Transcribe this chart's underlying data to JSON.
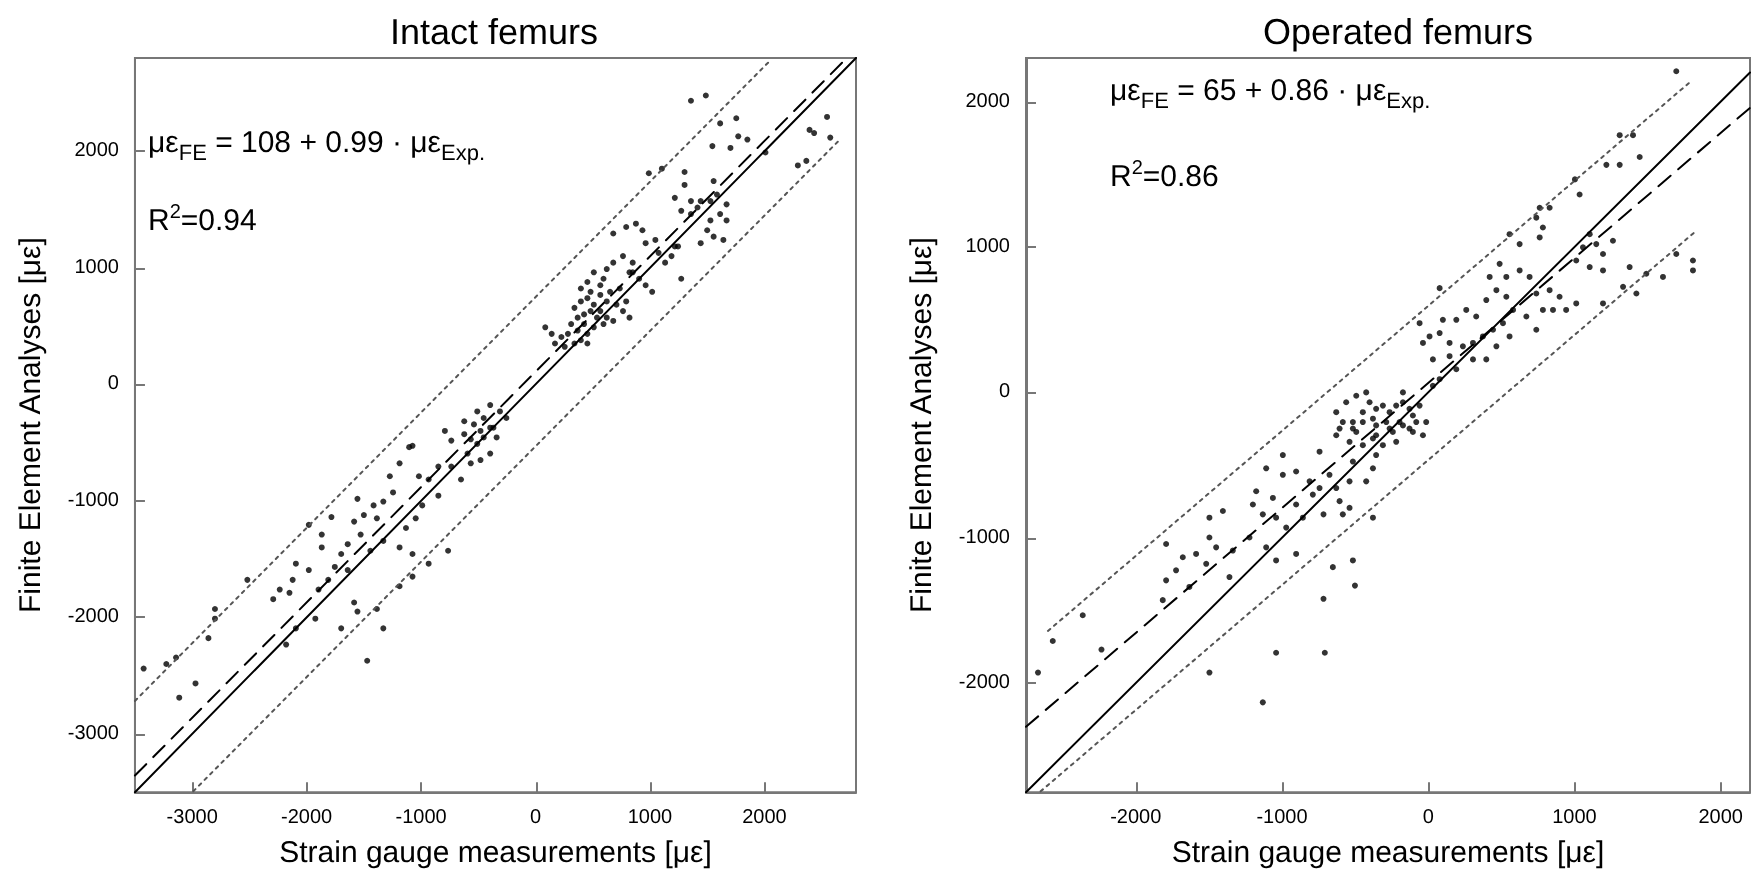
{
  "chart_data": [
    {
      "type": "scatter",
      "title": "Intact femurs",
      "xlabel": "Strain gauge measurements [με]",
      "ylabel": "Finite Element Analyses [με]",
      "annotations": [
        "με$_{FE}$ = 108 + 0.99 · με$_{Exp.}$",
        "R$^{2}$=0.94"
      ],
      "xlim": [
        -3500,
        2800
      ],
      "ylim": [
        -3500,
        2800
      ],
      "xticks": [
        -3000,
        -2000,
        -1000,
        0,
        1000,
        2000
      ],
      "yticks": [
        -3000,
        -2000,
        -1000,
        0,
        1000,
        2000
      ],
      "grid": false,
      "series": [
        {
          "type": "scatter",
          "marker": "circle",
          "color": "#000000",
          "x": [
            1358,
            1488,
            1613,
            1754,
            1771,
            1545,
            1703,
            1851,
            2009,
            2394,
            2547,
            2575,
            2292,
            2366,
            2434,
            990,
            1104,
            1302,
            1302,
            1217,
            1358,
            1443,
            1273,
            1358,
            1415,
            1528,
            1585,
            1669,
            1613,
            1669,
            1500,
            1556,
            1641,
            1443,
            1245,
            1188,
            1273,
            679,
            792,
            877,
            934,
            962,
            1047,
            1075,
            1132,
            1019,
            905,
            821,
            849,
            764,
            679,
            622,
            594,
            509,
            453,
            396,
            481,
            566,
            622,
            707,
            764,
            821,
            622,
            566,
            509,
            453,
            396,
            340,
            368,
            311,
            283,
            368,
            424,
            453,
            396,
            340,
            255,
            453,
            85,
            141,
            170,
            226,
            509,
            594,
            679,
            962,
            792,
            537,
            424,
            481,
            566,
            651,
            736,
            849,
            1217,
            1528,
            1556,
            -1075,
            -623,
            -509,
            -396,
            -311,
            -255,
            -481,
            -566,
            -453,
            -368,
            -792,
            -736,
            -623,
            -538,
            -453,
            -396,
            -340,
            -509,
            -594,
            -566,
            -481,
            -396,
            -651,
            -736,
            -849,
            -934,
            -1019,
            -1104,
            -1188,
            -1273,
            -1245,
            -1330,
            -1386,
            -1500,
            -1585,
            -1528,
            -1443,
            -1330,
            -1188,
            -1075,
            -1132,
            -1047,
            -990,
            -849,
            -764,
            -934,
            -1641,
            -1698,
            -1754,
            -1641,
            -1811,
            -1896,
            -1981,
            -2094,
            -2122,
            -2150,
            -2235,
            -2292,
            -1868,
            -1981,
            -1783,
            -1556,
            -1415,
            -2518,
            -2094,
            -2179,
            -1924,
            -1698,
            -1556,
            -1386,
            -1330,
            -1471,
            -1585,
            -2801,
            -2801,
            -2858,
            -2971,
            -3141,
            -3226,
            -3424,
            -3113,
            -1188,
            -1075,
            -1868
          ],
          "values": [
            2433,
            2478,
            2239,
            2283,
            2128,
            2044,
            2028,
            2100,
            1989,
            2183,
            2294,
            2117,
            1878,
            1917,
            2156,
            1811,
            1850,
            1822,
            1711,
            1600,
            1572,
            1572,
            1489,
            1461,
            1517,
            1572,
            1628,
            1544,
            1461,
            1406,
            1322,
            1267,
            1239,
            1211,
            1183,
            1100,
            906,
            1294,
            1350,
            1378,
            1322,
            1211,
            1239,
            1128,
            1044,
            794,
            906,
            961,
            1044,
            1100,
            1044,
            989,
            906,
            961,
            878,
            822,
            794,
            767,
            711,
            683,
            628,
            572,
            572,
            628,
            683,
            739,
            711,
            656,
            572,
            517,
            433,
            461,
            517,
            433,
            378,
            350,
            322,
            350,
            489,
            433,
            350,
            406,
            489,
            517,
            544,
            850,
            711,
            572,
            600,
            628,
            850,
            794,
            822,
            961,
            1183,
            1406,
            1744,
            -528,
            -317,
            -233,
            -178,
            -233,
            -289,
            -400,
            -472,
            -456,
            -372,
            -400,
            -483,
            -428,
            -344,
            -289,
            -372,
            -456,
            -511,
            -594,
            -678,
            -650,
            -594,
            -817,
            -706,
            -706,
            -817,
            -789,
            -539,
            -678,
            -789,
            -928,
            -1006,
            -1150,
            -1122,
            -1178,
            -1289,
            -1428,
            -1344,
            -1400,
            -1456,
            -1233,
            -1150,
            -1039,
            -956,
            -1428,
            -1539,
            -1372,
            -1456,
            -1567,
            -1594,
            -1678,
            -1761,
            -1594,
            -1539,
            -1678,
            -1789,
            -1761,
            -1844,
            -1289,
            -1206,
            -1139,
            -983,
            -1039,
            -1678,
            -2094,
            -2233,
            -2011,
            -2094,
            -1950,
            -1928,
            -2094,
            -2372,
            -1872,
            -1928,
            -2011,
            -2178,
            -2567,
            -2344,
            -2400,
            -2439,
            -2689,
            -1733,
            -1650,
            -1400
          ]
        },
        {
          "type": "line",
          "marker": "none",
          "line_style": "dashed",
          "color": "#000000",
          "x": [
            -3500,
            2700
          ],
          "values": [
            -3357,
            2781
          ]
        },
        {
          "type": "line",
          "marker": "none",
          "line_style": "solid",
          "color": "#000000",
          "x": [
            -3500,
            2800
          ],
          "values": [
            -3500,
            2800
          ]
        },
        {
          "type": "line",
          "marker": "none",
          "line_style": "dotted",
          "color": "#555555",
          "x": [
            -3500,
            2050
          ],
          "values": [
            -2717,
            2778
          ]
        },
        {
          "type": "line",
          "marker": "none",
          "line_style": "dotted",
          "color": "#555555",
          "x": [
            -2990,
            2650
          ],
          "values": [
            -3492,
            2091
          ]
        }
      ]
    },
    {
      "type": "scatter",
      "title": "Operated femurs",
      "xlabel": "Strain gauge measurements [με]",
      "ylabel": "Finite Element Analyses [με]",
      "annotations": [
        "με$_{FE}$ = 65 + 0.86 · με$_{Exp.}$",
        "R$^{2}$=0.86"
      ],
      "xlim": [
        -2750,
        2200
      ],
      "ylim": [
        -2750,
        2300
      ],
      "xticks": [
        -2000,
        -1000,
        0,
        1000,
        2000
      ],
      "yticks": [
        -2000,
        -1000,
        0,
        1000,
        2000
      ],
      "grid": false,
      "series": [
        {
          "type": "scatter",
          "marker": "circle",
          "color": "#000000",
          "x": [
            1696,
            1309,
            1400,
            1446,
            1309,
            1218,
            1003,
            1035,
            830,
            762,
            739,
            784,
            762,
            556,
            625,
            1104,
            1149,
            1195,
            1263,
            1058,
            1012,
            1104,
            1195,
            1377,
            1491,
            1605,
            1696,
            1810,
            1810,
            1332,
            1423,
            1195,
            1012,
            943,
            898,
            830,
            739,
            693,
            625,
            534,
            488,
            420,
            466,
            397,
            534,
            580,
            671,
            784,
            853,
            739,
            328,
            260,
            192,
            100,
            78,
            9,
            146,
            237,
            306,
            374,
            443,
            511,
            556,
            466,
            397,
            306,
            192,
            78,
            32,
            -36,
            78,
            -59,
            32,
            146,
            -401,
            -356,
            -310,
            -264,
            -219,
            -173,
            -128,
            -105,
            -196,
            -287,
            -378,
            -447,
            -515,
            -629,
            -606,
            -492,
            -356,
            -242,
            -128,
            -82,
            -59,
            -14,
            -424,
            -492,
            -561,
            -173,
            -584,
            -515,
            -447,
            -356,
            -264,
            -173,
            -105,
            -36,
            -219,
            -310,
            -378,
            -447,
            -538,
            -629,
            -515,
            -356,
            -378,
            -424,
            -538,
            -629,
            -675,
            -743,
            -743,
            -811,
            -903,
            -994,
            -1062,
            -1176,
            -1199,
            -1131,
            -1040,
            -971,
            -903,
            -857,
            -789,
            -716,
            -606,
            -584,
            -538,
            -378,
            -903,
            -1040,
            -1108,
            -1222,
            -1336,
            -1359,
            -1450,
            -1518,
            -1587,
            -1633,
            -1724,
            -1792,
            -1792,
            -1678,
            -1496,
            -1496,
            -1404,
            -1108,
            -994,
            -652,
            -515,
            -501,
            -716,
            -1040,
            -707,
            -1131,
            -1496,
            -2362,
            -2567,
            -2234,
            -2668,
            -1815
          ],
          "values": [
            2209,
            1769,
            1769,
            1619,
            1565,
            1565,
            1465,
            1361,
            1270,
            1270,
            1202,
            1134,
            1066,
            1088,
            1020,
            1088,
            1020,
            952,
            1043,
            998,
            907,
            862,
            839,
            862,
            816,
            794,
            952,
            907,
            839,
            726,
            680,
            612,
            612,
            567,
            658,
            703,
            680,
            794,
            839,
            794,
            884,
            794,
            703,
            635,
            658,
            567,
            522,
            567,
            567,
            431,
            522,
            567,
            499,
            499,
            408,
            385,
            340,
            317,
            340,
            385,
            431,
            476,
            385,
            317,
            227,
            227,
            159,
            91,
            45,
            340,
            717,
            476,
            227,
            249,
            -68,
            -113,
            -91,
            -136,
            -91,
            -68,
            -113,
            -159,
            -204,
            -204,
            -181,
            -136,
            -204,
            -136,
            -249,
            -272,
            -295,
            -272,
            -249,
            -204,
            -91,
            -204,
            0,
            -23,
            -68,
            0,
            -204,
            -249,
            -204,
            -227,
            -249,
            -227,
            -272,
            -295,
            -340,
            -363,
            -317,
            -363,
            -340,
            -295,
            -476,
            -431,
            -522,
            -612,
            -612,
            -658,
            -567,
            -408,
            -658,
            -612,
            -544,
            -567,
            -726,
            -680,
            -771,
            -839,
            -862,
            -930,
            -771,
            -862,
            -703,
            -839,
            -748,
            -839,
            -794,
            -862,
            -1111,
            -1156,
            -1066,
            -998,
            -1088,
            -1270,
            -1066,
            -1179,
            -1111,
            -1338,
            -1224,
            -1043,
            -1293,
            -1134,
            -998,
            -862,
            -816,
            -522,
            -431,
            -1202,
            -1156,
            -1329,
            -1420,
            -1791,
            -1791,
            -2132,
            -1927,
            -1533,
            -1710,
            -1769,
            -1927,
            -1429
          ]
        },
        {
          "type": "line",
          "marker": "none",
          "line_style": "dashed",
          "color": "#000000",
          "x": [
            -2750,
            2200
          ],
          "values": [
            -2300,
            1957
          ]
        },
        {
          "type": "line",
          "marker": "none",
          "line_style": "solid",
          "color": "#000000",
          "x": [
            -2750,
            2200
          ],
          "values": [
            -2750,
            2200
          ]
        },
        {
          "type": "line",
          "marker": "none",
          "line_style": "dotted",
          "color": "#555555",
          "x": [
            -2600,
            1800
          ],
          "values": [
            -1641,
            2143
          ]
        },
        {
          "type": "line",
          "marker": "none",
          "line_style": "dotted",
          "color": "#555555",
          "x": [
            -2650,
            1830
          ],
          "values": [
            -2744,
            1109
          ]
        }
      ]
    }
  ]
}
